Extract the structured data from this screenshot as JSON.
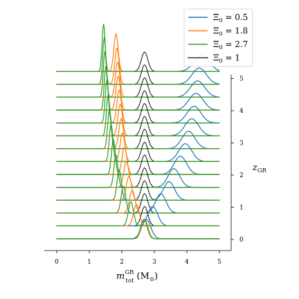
{
  "chart_data": {
    "type": "line",
    "subtype": "ridgeline",
    "xlabel": "m_tot^GR (M_⊙)",
    "xlabel_parts": {
      "m": "m",
      "sup": "GR",
      "sub": "tot",
      "unit_open": " (M",
      "unit_sub": "⊙",
      "unit_close": ")"
    },
    "ylabel": "z_GR",
    "ylabel_parts": {
      "z": "z",
      "sub": "GR"
    },
    "xlim": [
      -0.4,
      5.4
    ],
    "ylim": [
      -0.3,
      5.3
    ],
    "x_ticks": [
      0,
      1,
      2,
      3,
      4,
      5
    ],
    "x_tick_labels": [
      "0",
      "1",
      "2",
      "3",
      "4",
      "5"
    ],
    "y_ticks": [
      0,
      1,
      2,
      3,
      4,
      5
    ],
    "y_tick_labels": [
      "0",
      "1",
      "2",
      "3",
      "4",
      "5"
    ],
    "ridge_redshifts": [
      0,
      0.4,
      0.8,
      1.2,
      1.6,
      2.0,
      2.4,
      2.8,
      3.2,
      3.6,
      4.0,
      4.4,
      4.8,
      5.2
    ],
    "grid": false,
    "legend_position": "top-right",
    "legend": [
      {
        "label": "Ξ₀ = 0.5",
        "label_main": "Ξ",
        "label_sub": "0",
        "label_rest": " = 0.5",
        "color": "#1f77b4",
        "style": "solid"
      },
      {
        "label": "Ξ₀ = 1.8",
        "label_main": "Ξ",
        "label_sub": "0",
        "label_rest": " = 1.8",
        "color": "#ff7f0e",
        "style": "solid"
      },
      {
        "label": "Ξ₀ = 2.7",
        "label_main": "Ξ",
        "label_sub": "0",
        "label_rest": " = 2.7",
        "color": "#2ca02c",
        "style": "solid"
      },
      {
        "label": "Ξ₀ = 1",
        "label_main": "Ξ",
        "label_sub": "0",
        "label_rest": " = 1",
        "color": "#000000",
        "style": "dotted"
      }
    ],
    "series": [
      {
        "name": "Ξ₀ = 0.5",
        "color": "#1f77b4",
        "style": "solid",
        "peak_x": [
          2.75,
          2.95,
          3.2,
          3.45,
          3.6,
          3.8,
          3.95,
          4.05,
          4.15,
          4.22,
          4.28,
          4.33,
          4.38,
          4.45
        ],
        "sigma": [
          0.14,
          0.15,
          0.16,
          0.17,
          0.18,
          0.19,
          0.2,
          0.2,
          0.21,
          0.21,
          0.22,
          0.22,
          0.22,
          0.23
        ],
        "height": [
          0.5,
          0.5,
          0.5,
          0.48,
          0.48,
          0.47,
          0.46,
          0.45,
          0.44,
          0.43,
          0.43,
          0.42,
          0.42,
          0.42
        ]
      },
      {
        "name": "Ξ₀ = 1.8",
        "color": "#ff7f0e",
        "style": "solid",
        "peak_x": [
          2.7,
          2.45,
          2.32,
          2.22,
          2.14,
          2.08,
          2.02,
          1.98,
          1.95,
          1.92,
          1.89,
          1.87,
          1.85,
          1.82
        ],
        "sigma": [
          0.1,
          0.09,
          0.085,
          0.08,
          0.078,
          0.075,
          0.073,
          0.071,
          0.07,
          0.069,
          0.068,
          0.067,
          0.066,
          0.065
        ],
        "height": [
          0.5,
          0.55,
          0.58,
          0.62,
          0.66,
          0.7,
          0.74,
          0.78,
          0.82,
          0.85,
          0.88,
          0.91,
          0.94,
          0.97
        ]
      },
      {
        "name": "Ξ₀ = 2.7",
        "color": "#2ca02c",
        "style": "solid",
        "peak_x": [
          2.68,
          2.28,
          2.05,
          1.92,
          1.82,
          1.74,
          1.67,
          1.62,
          1.58,
          1.54,
          1.51,
          1.48,
          1.46,
          1.44
        ],
        "sigma": [
          0.1,
          0.08,
          0.072,
          0.066,
          0.062,
          0.058,
          0.056,
          0.054,
          0.052,
          0.051,
          0.05,
          0.049,
          0.048,
          0.047
        ],
        "height": [
          0.5,
          0.62,
          0.7,
          0.78,
          0.84,
          0.9,
          0.96,
          1.02,
          1.06,
          1.1,
          1.14,
          1.18,
          1.2,
          1.22
        ]
      },
      {
        "name": "Ξ₀ = 1",
        "color": "#000000",
        "style": "dotted",
        "peak_x": [
          2.7,
          2.7,
          2.7,
          2.7,
          2.7,
          2.7,
          2.7,
          2.7,
          2.7,
          2.7,
          2.7,
          2.7,
          2.7,
          2.7
        ],
        "sigma": [
          0.1,
          0.1,
          0.1,
          0.1,
          0.1,
          0.1,
          0.1,
          0.1,
          0.1,
          0.1,
          0.1,
          0.1,
          0.1,
          0.1
        ],
        "height": [
          0.5,
          0.5,
          0.5,
          0.5,
          0.5,
          0.5,
          0.5,
          0.5,
          0.5,
          0.5,
          0.5,
          0.5,
          0.5,
          0.5
        ]
      }
    ]
  }
}
